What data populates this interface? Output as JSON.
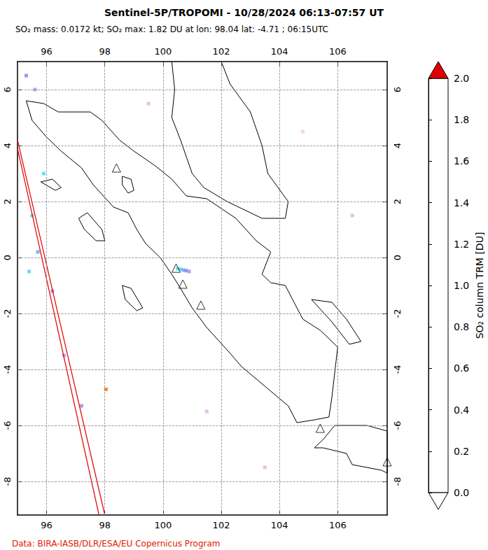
{
  "chart_data": {
    "type": "map",
    "title": "Sentinel-5P/TROPOMI - 10/28/2024 06:13-07:57 UT",
    "subtitle": "SO₂ mass: 0.0172 kt; SO₂ max: 1.82 DU at lon: 98.04 lat: -4.71 ; 06:15UTC",
    "credit": "Data: BIRA-IASB/DLR/ESA/EU Copernicus Program",
    "colorbar_label": "SO₂ column TRM [DU]",
    "xlim": [
      95,
      107.7
    ],
    "xticks": [
      96,
      98,
      100,
      102,
      104,
      106
    ],
    "ylim": [
      -9.2,
      7
    ],
    "yticks": [
      -8,
      -6,
      -4,
      -2,
      0,
      2,
      4,
      6
    ],
    "grid": true,
    "coastlines": [
      [
        [
          95.3,
          5.6
        ],
        [
          95.5,
          4.9
        ],
        [
          96.0,
          4.3
        ],
        [
          96.5,
          3.8
        ],
        [
          97.2,
          3.2
        ],
        [
          97.6,
          2.6
        ],
        [
          98.3,
          1.8
        ],
        [
          98.8,
          1.6
        ],
        [
          99.1,
          1.0
        ],
        [
          99.4,
          0.5
        ],
        [
          99.9,
          0.0
        ],
        [
          100.3,
          -0.6
        ],
        [
          100.6,
          -1.1
        ],
        [
          101.0,
          -1.8
        ],
        [
          101.5,
          -2.5
        ],
        [
          102.2,
          -3.3
        ],
        [
          102.7,
          -3.9
        ],
        [
          103.5,
          -4.6
        ],
        [
          104.3,
          -5.3
        ],
        [
          104.6,
          -5.9
        ],
        [
          105.2,
          -5.8
        ],
        [
          105.7,
          -5.7
        ],
        [
          105.8,
          -5.0
        ],
        [
          105.9,
          -4.1
        ],
        [
          106.0,
          -3.2
        ],
        [
          105.4,
          -2.6
        ],
        [
          104.8,
          -2.2
        ],
        [
          104.5,
          -1.6
        ],
        [
          104.2,
          -1.0
        ],
        [
          103.7,
          -0.9
        ],
        [
          103.4,
          -0.6
        ],
        [
          103.7,
          0.2
        ],
        [
          103.2,
          0.6
        ],
        [
          102.5,
          1.4
        ],
        [
          101.5,
          2.1
        ],
        [
          100.8,
          2.2
        ],
        [
          100.3,
          2.8
        ],
        [
          99.7,
          3.3
        ],
        [
          99.0,
          3.8
        ],
        [
          98.5,
          4.2
        ],
        [
          97.9,
          4.9
        ],
        [
          97.5,
          5.2
        ],
        [
          96.4,
          5.2
        ],
        [
          95.9,
          5.5
        ],
        [
          95.3,
          5.6
        ]
      ],
      [
        [
          100.3,
          7.0
        ],
        [
          100.4,
          6.0
        ],
        [
          100.3,
          5.0
        ],
        [
          100.6,
          4.2
        ],
        [
          101.0,
          3.0
        ],
        [
          101.4,
          2.5
        ],
        [
          102.2,
          2.0
        ],
        [
          103.4,
          1.4
        ],
        [
          104.2,
          1.4
        ],
        [
          104.3,
          2.0
        ],
        [
          103.6,
          3.0
        ],
        [
          103.4,
          4.0
        ],
        [
          103.0,
          5.2
        ],
        [
          102.3,
          6.2
        ],
        [
          102.0,
          7.0
        ]
      ],
      [
        [
          105.2,
          -6.8
        ],
        [
          105.5,
          -6.5
        ],
        [
          105.9,
          -6.0
        ],
        [
          106.5,
          -6.0
        ],
        [
          107.0,
          -6.0
        ],
        [
          107.7,
          -6.2
        ],
        [
          107.7,
          -7.7
        ],
        [
          107.5,
          -7.6
        ],
        [
          106.5,
          -7.4
        ],
        [
          106.3,
          -7.0
        ],
        [
          105.5,
          -6.8
        ],
        [
          105.2,
          -6.8
        ]
      ],
      [
        [
          97.1,
          1.4
        ],
        [
          97.4,
          1.6
        ],
        [
          97.9,
          1.0
        ],
        [
          98.0,
          0.6
        ],
        [
          97.7,
          0.6
        ],
        [
          97.3,
          1.0
        ],
        [
          97.1,
          1.4
        ]
      ],
      [
        [
          95.8,
          2.7
        ],
        [
          96.2,
          2.8
        ],
        [
          96.5,
          2.5
        ],
        [
          96.3,
          2.4
        ],
        [
          95.8,
          2.7
        ]
      ],
      [
        [
          98.6,
          -1.0
        ],
        [
          98.9,
          -1.1
        ],
        [
          99.3,
          -1.8
        ],
        [
          99.1,
          -1.9
        ],
        [
          98.7,
          -1.5
        ],
        [
          98.6,
          -1.0
        ]
      ],
      [
        [
          105.1,
          -1.5
        ],
        [
          105.8,
          -1.6
        ],
        [
          106.3,
          -2.2
        ],
        [
          106.8,
          -3.0
        ],
        [
          106.4,
          -3.1
        ],
        [
          105.8,
          -2.3
        ],
        [
          105.1,
          -1.5
        ]
      ],
      [
        [
          98.6,
          2.9
        ],
        [
          98.9,
          2.8
        ],
        [
          99.0,
          2.4
        ],
        [
          98.8,
          2.3
        ],
        [
          98.6,
          2.6
        ],
        [
          98.6,
          2.9
        ]
      ]
    ],
    "swath_edges": [
      [
        [
          95.0,
          4.2
        ],
        [
          98.0,
          -9.2
        ]
      ],
      [
        [
          95.0,
          3.9
        ],
        [
          97.8,
          -9.2
        ]
      ]
    ],
    "volcanoes": {
      "marker": "triangle",
      "points": [
        [
          98.4,
          3.2
        ],
        [
          100.45,
          -0.38
        ],
        [
          100.68,
          -0.95
        ],
        [
          101.3,
          -1.7
        ],
        [
          105.4,
          -6.1
        ],
        [
          107.7,
          -7.3
        ]
      ]
    },
    "so2_points": [
      [
        100.5,
        -0.4,
        1.0
      ],
      [
        100.6,
        -0.42,
        0.9
      ],
      [
        100.7,
        -0.45,
        0.8
      ],
      [
        100.8,
        -0.47,
        0.7
      ],
      [
        100.9,
        -0.5,
        0.5
      ],
      [
        98.04,
        -4.71,
        1.82
      ],
      [
        95.5,
        1.5,
        1.0
      ],
      [
        95.7,
        0.2,
        0.8
      ],
      [
        95.4,
        -0.5,
        0.9
      ],
      [
        95.9,
        3.0,
        0.9
      ],
      [
        96.2,
        -1.2,
        0.6
      ],
      [
        96.6,
        -3.5,
        0.5
      ],
      [
        97.2,
        -5.3,
        0.6
      ],
      [
        95.3,
        6.5,
        0.7
      ],
      [
        95.6,
        6.0,
        0.5
      ],
      [
        99.5,
        5.5,
        0.3
      ],
      [
        103.5,
        -7.5,
        0.3
      ],
      [
        106.5,
        1.5,
        0.3
      ],
      [
        104.8,
        4.5,
        0.2
      ],
      [
        101.5,
        -5.5,
        0.3
      ]
    ],
    "colorbar": {
      "range": [
        0,
        2
      ],
      "ticks": [
        {
          "value": 0,
          "label": "0.0"
        },
        0.2,
        0.4,
        0.6,
        0.8,
        {
          "value": 1,
          "label": "1.0"
        },
        1.2,
        1.4,
        1.6,
        1.8,
        {
          "value": 2,
          "label": "2.0"
        }
      ]
    }
  }
}
